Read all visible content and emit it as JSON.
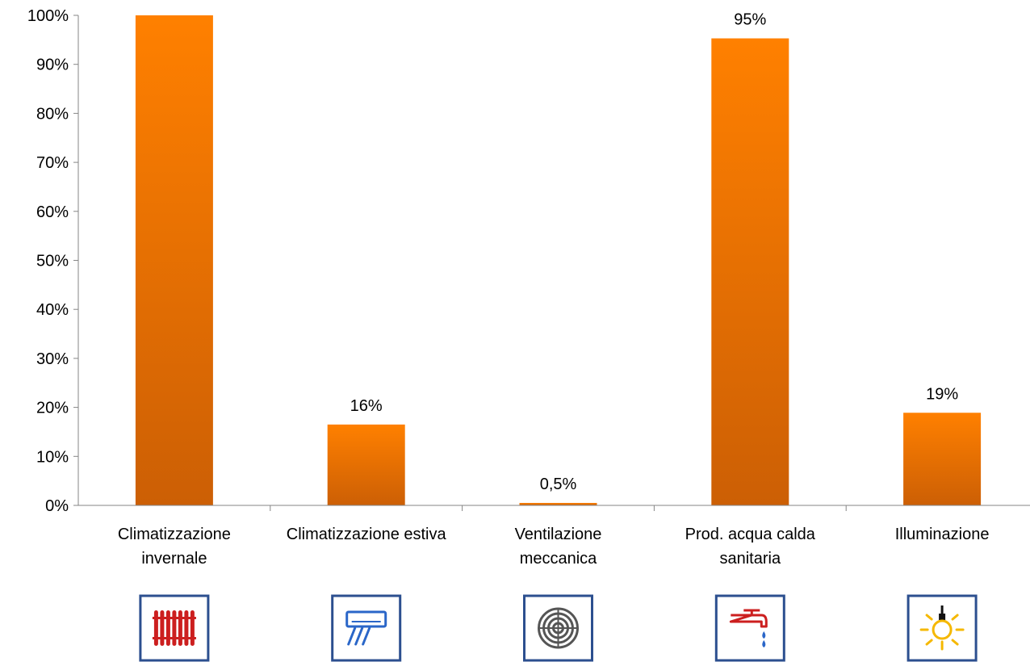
{
  "chart_data": {
    "type": "bar",
    "categories": [
      [
        "Climatizzazione",
        "invernale"
      ],
      [
        "Climatizzazione estiva"
      ],
      [
        "Ventilazione",
        "meccanica"
      ],
      [
        "Prod. acqua calda",
        "sanitaria"
      ],
      [
        "Illuminazione"
      ]
    ],
    "values": [
      100,
      16.5,
      0.5,
      95.3,
      18.9
    ],
    "data_labels": [
      "",
      "16%",
      "0,5%",
      "95%",
      "19%"
    ],
    "y_ticks": [
      "0%",
      "10%",
      "20%",
      "30%",
      "40%",
      "50%",
      "60%",
      "70%",
      "80%",
      "90%",
      "100%"
    ],
    "ylim": [
      0,
      100
    ],
    "title": "",
    "xlabel": "",
    "ylabel": "",
    "grid": false,
    "legend": "none",
    "bar_color_top": "#ff8000",
    "bar_color_bottom": "#cc5f05",
    "icons": [
      {
        "name": "radiator-icon",
        "color": "#cc1f1f"
      },
      {
        "name": "air-conditioner-icon",
        "color": "#2a66c8"
      },
      {
        "name": "fan-icon",
        "color": "#555555"
      },
      {
        "name": "water-tap-icon",
        "color": "#cc1f1f"
      },
      {
        "name": "light-bulb-icon",
        "color": "#f5b800"
      }
    ]
  }
}
